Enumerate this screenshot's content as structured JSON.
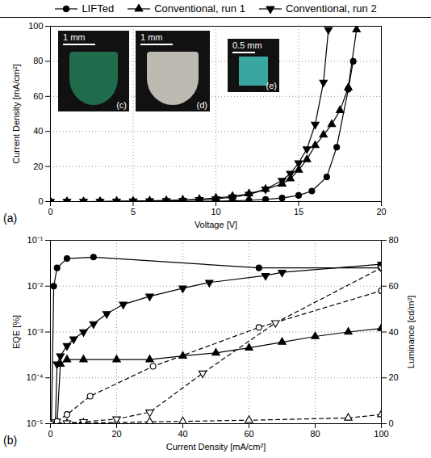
{
  "chart_data": [
    {
      "type": "line",
      "xlabel": "Voltage [V]",
      "ylabel": "Current Density [mA/cm²]",
      "xlim": [
        0,
        20
      ],
      "xticks": [
        0,
        5,
        10,
        15,
        20
      ],
      "ylim": [
        0,
        100
      ],
      "yticks": [
        0,
        20,
        40,
        60,
        80,
        100
      ],
      "grid": true,
      "legend": "top",
      "annotations": [
        "(a)"
      ],
      "insets": [
        {
          "label": "(c)",
          "scale_bar": "1 mm",
          "color": "#1f6b4c"
        },
        {
          "label": "(d)",
          "scale_bar": "1 mm",
          "color": "#bdbab2"
        },
        {
          "label": "(e)",
          "scale_bar": "0.5 mm",
          "color": "#3aa6a0"
        }
      ],
      "series": [
        {
          "name": "LIFTed",
          "color": "#000000",
          "marker": "circle",
          "line_style": "solid",
          "x": [
            0,
            1,
            2,
            3,
            4,
            5,
            6,
            7,
            8,
            9,
            10,
            11,
            12,
            13,
            14,
            15,
            15.8,
            16.7,
            17.3,
            18,
            18.3
          ],
          "values": [
            0,
            0,
            0,
            0,
            0,
            0,
            0,
            0,
            0,
            0.1,
            0.2,
            0.4,
            0.7,
            1.2,
            2,
            3.5,
            6,
            14,
            31,
            64,
            80
          ]
        },
        {
          "name": "Conventional, run 1",
          "color": "#000000",
          "marker": "triangle",
          "line_style": "solid",
          "x": [
            0,
            1,
            2,
            3,
            4,
            5,
            6,
            7,
            8,
            9,
            10,
            11,
            12,
            13,
            14,
            14.5,
            15,
            15.5,
            16,
            16.5,
            17,
            17.5,
            18,
            18.5
          ],
          "values": [
            0,
            0,
            0,
            0.1,
            0.2,
            0.3,
            0.4,
            0.6,
            0.9,
            1.3,
            2,
            3,
            4.5,
            7,
            10,
            13,
            18,
            24,
            32,
            38,
            44,
            52,
            65,
            98
          ]
        },
        {
          "name": "Conventional, run 2",
          "color": "#000000",
          "marker": "triangle-down",
          "line_style": "solid",
          "x": [
            0,
            1,
            2,
            3,
            4,
            5,
            6,
            7,
            8,
            9,
            10,
            11,
            12,
            13,
            14,
            14.5,
            15,
            15.5,
            16,
            16.5,
            16.8
          ],
          "values": [
            0,
            0,
            0,
            0,
            0.1,
            0.2,
            0.3,
            0.4,
            0.6,
            1,
            1.5,
            2.5,
            4,
            7,
            12,
            16,
            22,
            30,
            44,
            68,
            98
          ]
        }
      ]
    },
    {
      "type": "line",
      "xlabel": "Current Density [mA/cm²]",
      "ylabel": "EQE [%]",
      "y2label": "Luminance [cd/m²]",
      "log": "y",
      "xlim": [
        0,
        100
      ],
      "xticks": [
        0,
        20,
        40,
        60,
        80,
        100
      ],
      "ylim": [
        1e-05,
        0.1
      ],
      "yticks": [
        {
          "value": 1e-05,
          "label": "10⁻⁵"
        },
        {
          "value": 0.0001,
          "label": "10⁻⁴"
        },
        {
          "value": 0.001,
          "label": "10⁻³"
        },
        {
          "value": 0.01,
          "label": "10⁻²"
        },
        {
          "value": 0.1,
          "label": "10⁻¹"
        }
      ],
      "y2lim": [
        0,
        80
      ],
      "y2ticks": [
        0,
        20,
        40,
        60,
        80
      ],
      "grid": true,
      "annotations": [
        "(b)"
      ],
      "series": [
        {
          "name": "LIFTed",
          "color": "#000000",
          "marker": "circle",
          "line_style": "solid",
          "x": [
            0.3,
            1,
            2,
            5,
            13,
            63,
            100
          ],
          "values": [
            1e-05,
            0.01,
            0.025,
            0.04,
            0.043,
            0.025,
            0.025
          ]
        },
        {
          "name": "Conventional, run 1",
          "color": "#000000",
          "marker": "triangle",
          "line_style": "solid",
          "x": [
            2,
            3,
            5,
            10,
            20,
            30,
            40,
            50,
            60,
            70,
            80,
            90,
            100
          ],
          "values": [
            1e-05,
            0.0002,
            0.00025,
            0.00025,
            0.00025,
            0.00025,
            0.0003,
            0.00035,
            0.00045,
            0.0006,
            0.0008,
            0.001,
            0.0012
          ]
        },
        {
          "name": "Conventional, run 2",
          "color": "#000000",
          "marker": "triangle-down",
          "line_style": "solid",
          "x": [
            1.5,
            2,
            3,
            5,
            7,
            10,
            13,
            17,
            22,
            30,
            40,
            48,
            65,
            70,
            100
          ],
          "values": [
            1e-05,
            0.0002,
            0.0003,
            0.0005,
            0.0007,
            0.001,
            0.0015,
            0.0025,
            0.004,
            0.006,
            0.009,
            0.012,
            0.017,
            0.02,
            0.03
          ]
        },
        {
          "name": "LIFTed",
          "color": "#000000",
          "marker": "circle-open",
          "line_style": "dashed",
          "axis": "y2",
          "x": [
            0,
            1,
            2,
            5,
            12,
            31,
            63,
            100
          ],
          "values": [
            0,
            0.5,
            1,
            4,
            12,
            25,
            42,
            58
          ]
        },
        {
          "name": "Conventional, run 1",
          "color": "#000000",
          "marker": "triangle-open",
          "line_style": "dashed",
          "axis": "y2",
          "x": [
            0,
            5,
            10,
            20,
            30,
            40,
            60,
            90,
            100
          ],
          "values": [
            0,
            0.2,
            0.3,
            0.5,
            0.8,
            1,
            1.5,
            2.5,
            4
          ]
        },
        {
          "name": "Conventional, run 2",
          "color": "#000000",
          "marker": "triangle-down-open",
          "line_style": "dashed",
          "axis": "y2",
          "x": [
            0,
            5,
            10,
            20,
            30,
            46,
            68,
            100
          ],
          "values": [
            0,
            0.3,
            0.8,
            2,
            5,
            22,
            44,
            68
          ]
        }
      ]
    }
  ]
}
